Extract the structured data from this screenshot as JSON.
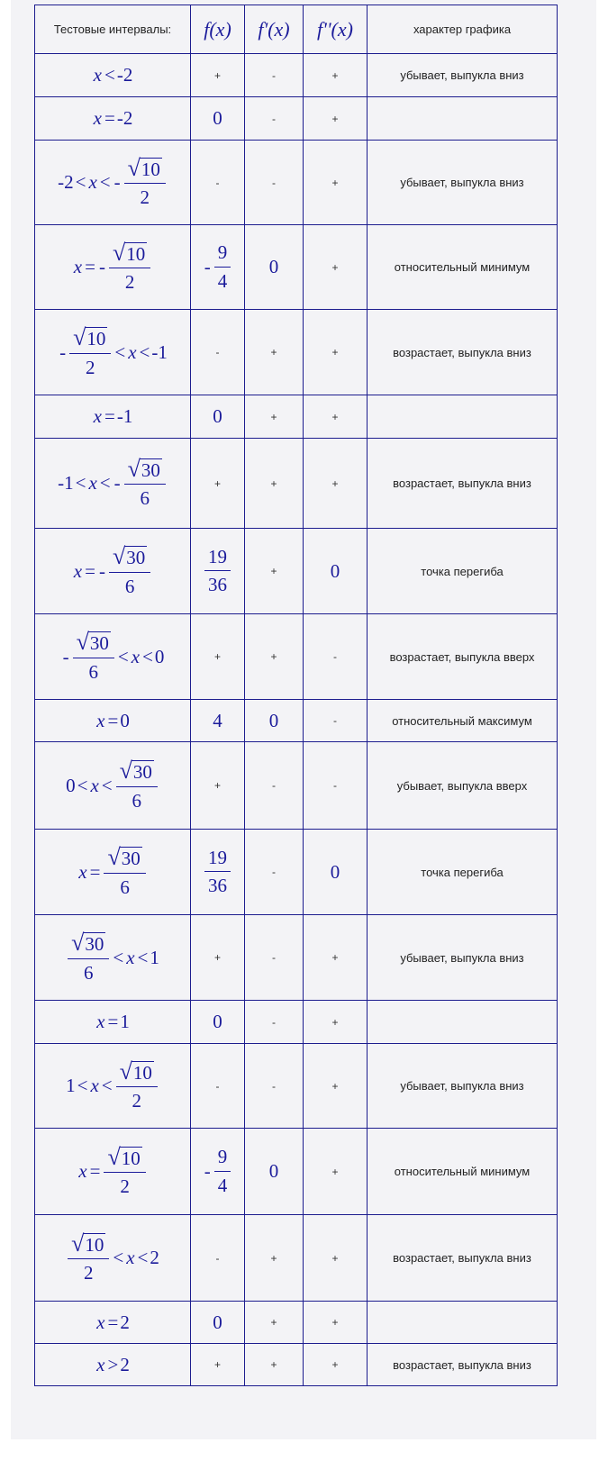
{
  "header": {
    "intervals": "Тестовые интервалы:",
    "f": "f(x)",
    "f1": "f'(x)",
    "f2": "f''(x)",
    "character": "характер графика"
  },
  "colors": {
    "border": "#1c1c8e",
    "math": "#1a1a9a"
  },
  "rows": [
    {
      "interval": [
        "x",
        "<",
        "-2"
      ],
      "f": "+",
      "f1": "-",
      "f2": "+",
      "desc": "убывает, выпукла вниз"
    },
    {
      "interval": [
        "x",
        "=",
        "-2"
      ],
      "f": "0",
      "f1": "-",
      "f2": "+",
      "desc": ""
    },
    {
      "interval": [
        "-2",
        "<",
        "x",
        "<",
        {
          "minus": true,
          "sqrt": "10",
          "den": "2"
        }
      ],
      "f": "-",
      "f1": "-",
      "f2": "+",
      "desc": "убывает, выпукла вниз"
    },
    {
      "interval": [
        "x",
        "=",
        {
          "minus": true,
          "sqrt": "10",
          "den": "2"
        }
      ],
      "f": {
        "minus": true,
        "num": "9",
        "den": "4"
      },
      "f1": "0",
      "f2": "+",
      "desc": "относительный минимум"
    },
    {
      "interval": [
        {
          "minus": true,
          "sqrt": "10",
          "den": "2"
        },
        "<",
        "x",
        "<",
        "-1"
      ],
      "f": "-",
      "f1": "+",
      "f2": "+",
      "desc": "возрастает, выпукла вниз"
    },
    {
      "interval": [
        "x",
        "=",
        "-1"
      ],
      "f": "0",
      "f1": "+",
      "f2": "+",
      "desc": ""
    },
    {
      "interval": [
        "-1",
        "<",
        "x",
        "<",
        {
          "minus": true,
          "sqrt": "30",
          "den": "6"
        }
      ],
      "f": "+",
      "f1": "+",
      "f2": "+",
      "desc": "возрастает, выпукла вниз"
    },
    {
      "interval": [
        "x",
        "=",
        {
          "minus": true,
          "sqrt": "30",
          "den": "6"
        }
      ],
      "f": {
        "minus": false,
        "num": "19",
        "den": "36"
      },
      "f1": "+",
      "f2": "0",
      "desc": "точка перегиба"
    },
    {
      "interval": [
        {
          "minus": true,
          "sqrt": "30",
          "den": "6"
        },
        "<",
        "x",
        "<",
        "0"
      ],
      "f": "+",
      "f1": "+",
      "f2": "-",
      "desc": "возрастает, выпукла вверх"
    },
    {
      "interval": [
        "x",
        "=",
        "0"
      ],
      "f": "4",
      "f1": "0",
      "f2": "-",
      "desc": "относительный максимум"
    },
    {
      "interval": [
        "0",
        "<",
        "x",
        "<",
        {
          "minus": false,
          "sqrt": "30",
          "den": "6"
        }
      ],
      "f": "+",
      "f1": "-",
      "f2": "-",
      "desc": "убывает, выпукла вверх"
    },
    {
      "interval": [
        "x",
        "=",
        {
          "minus": false,
          "sqrt": "30",
          "den": "6"
        }
      ],
      "f": {
        "minus": false,
        "num": "19",
        "den": "36"
      },
      "f1": "-",
      "f2": "0",
      "desc": "точка перегиба"
    },
    {
      "interval": [
        {
          "minus": false,
          "sqrt": "30",
          "den": "6"
        },
        "<",
        "x",
        "<",
        "1"
      ],
      "f": "+",
      "f1": "-",
      "f2": "+",
      "desc": "убывает, выпукла вниз"
    },
    {
      "interval": [
        "x",
        "=",
        "1"
      ],
      "f": "0",
      "f1": "-",
      "f2": "+",
      "desc": ""
    },
    {
      "interval": [
        "1",
        "<",
        "x",
        "<",
        {
          "minus": false,
          "sqrt": "10",
          "den": "2"
        }
      ],
      "f": "-",
      "f1": "-",
      "f2": "+",
      "desc": "убывает, выпукла вниз"
    },
    {
      "interval": [
        "x",
        "=",
        {
          "minus": false,
          "sqrt": "10",
          "den": "2"
        }
      ],
      "f": {
        "minus": true,
        "num": "9",
        "den": "4"
      },
      "f1": "0",
      "f2": "+",
      "desc": "относительный минимум"
    },
    {
      "interval": [
        {
          "minus": false,
          "sqrt": "10",
          "den": "2"
        },
        "<",
        "x",
        "<",
        "2"
      ],
      "f": "-",
      "f1": "+",
      "f2": "+",
      "desc": "возрастает, выпукла вниз"
    },
    {
      "interval": [
        "x",
        "=",
        "2"
      ],
      "f": "0",
      "f1": "+",
      "f2": "+",
      "desc": ""
    },
    {
      "interval": [
        "x",
        ">",
        "2"
      ],
      "f": "+",
      "f1": "+",
      "f2": "+",
      "desc": "возрастает, выпукла вниз"
    }
  ]
}
